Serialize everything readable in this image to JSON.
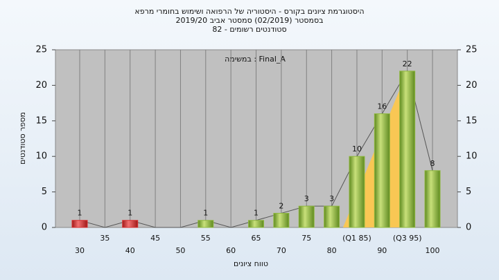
{
  "chart_data": {
    "type": "bar",
    "title": [
      "היסטוגרמת ציונים בקורס - היסטוריה של הרפואה ושימוש בחומרי מרפא",
      "בסמסטר  (02/2019)  סמסטר אביב 2019/20",
      "סטודנטים רשומים - 82"
    ],
    "annotation": "במשימה : Final_A",
    "x_label": "טווח ציונים",
    "y_label": "מספר סטודנטים",
    "categories": [
      "30",
      "35",
      "40",
      "45",
      "50",
      "55",
      "60",
      "65",
      "70",
      "75",
      "80",
      "(Q1 85)",
      "90",
      "(Q3 95)",
      "100"
    ],
    "values": [
      1,
      0,
      1,
      0,
      0,
      1,
      0,
      1,
      2,
      3,
      3,
      10,
      16,
      22,
      8
    ],
    "colors": [
      "#d83030",
      "#8fb840",
      "#d83030",
      "#8fb840",
      "#8fb840",
      "#8fb840",
      "#8fb840",
      "#8fb840",
      "#8fb840",
      "#8fb840",
      "#8fb840",
      "#8fb840",
      "#8fb840",
      "#8fb840",
      "#8fb840"
    ],
    "ylim": [
      0,
      25
    ],
    "yticks": [
      0,
      5,
      10,
      15,
      20,
      25
    ],
    "y2lim": [
      0,
      25
    ],
    "y2ticks": [
      0,
      5,
      10,
      15,
      20,
      25
    ],
    "grid": true
  }
}
